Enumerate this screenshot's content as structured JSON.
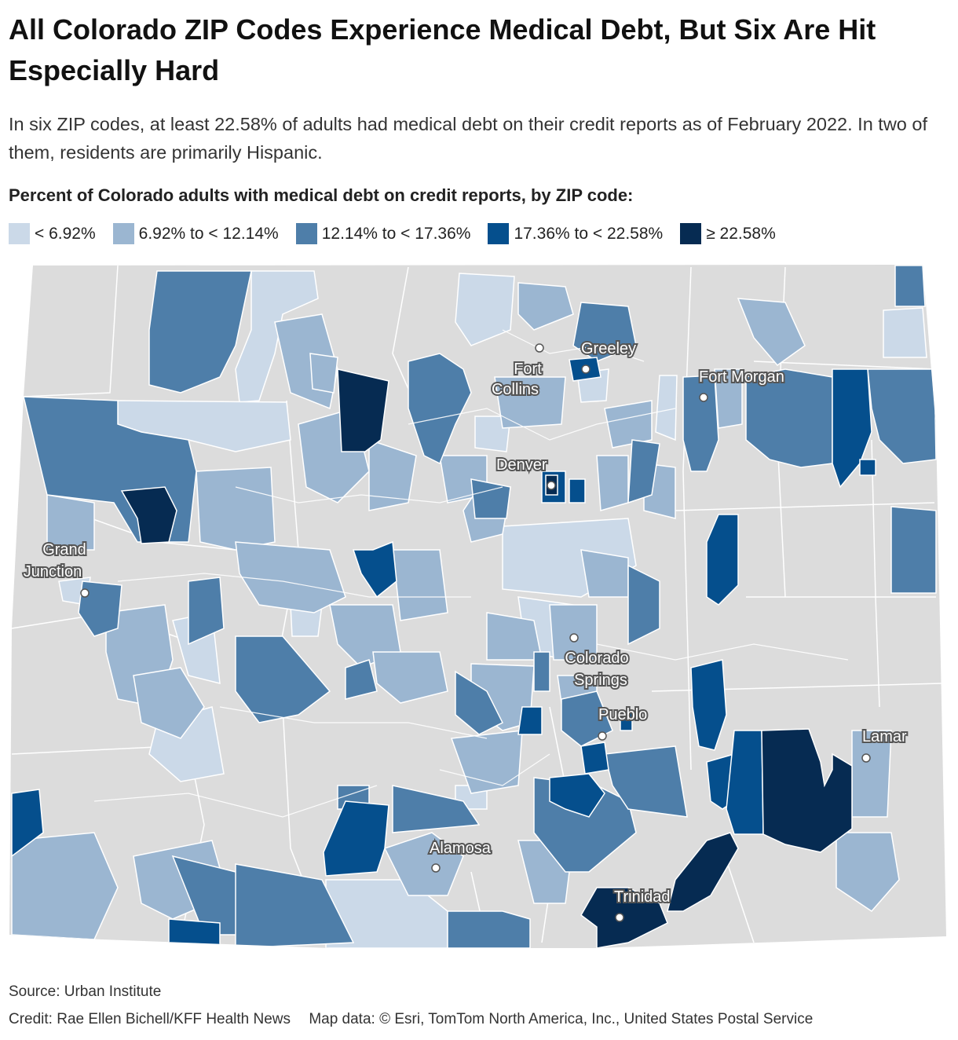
{
  "title": "All Colorado ZIP Codes Experience Medical Debt, But Six Are Hit Especially Hard",
  "subtitle": "In six ZIP codes, at least 22.58% of adults had medical debt on their credit reports as of February 2022. In two of them, residents are primarily Hispanic.",
  "legend": {
    "title": "Percent of Colorado adults with medical debt on credit reports, by ZIP code:",
    "items": [
      {
        "label": "< 6.92%",
        "color": "#cbd9e8"
      },
      {
        "label": "6.92% to < 12.14%",
        "color": "#9bb6d1"
      },
      {
        "label": "12.14% to < 17.36%",
        "color": "#4e7ea9"
      },
      {
        "label": "17.36% to < 22.58%",
        "color": "#054f8d"
      },
      {
        "label": "≥ 22.58%",
        "color": "#062b52"
      }
    ]
  },
  "cities": [
    {
      "label1": "Greeley",
      "label2": ""
    },
    {
      "label1": "Fort",
      "label2": "Collins"
    },
    {
      "label1": "Fort Morgan",
      "label2": ""
    },
    {
      "label1": "Denver",
      "label2": ""
    },
    {
      "label1": "Grand",
      "label2": "Junction"
    },
    {
      "label1": "Colorado",
      "label2": "Springs"
    },
    {
      "label1": "Pueblo",
      "label2": ""
    },
    {
      "label1": "Lamar",
      "label2": ""
    },
    {
      "label1": "Alamosa",
      "label2": ""
    },
    {
      "label1": "Trinidad",
      "label2": ""
    }
  ],
  "colors": {
    "nodata": "#dcdcdc",
    "border": "#ffffff"
  },
  "source": "Source: Urban Institute",
  "credit": "Credit: Rae Ellen Bichell/KFF Health News",
  "map_data": "Map data: © Esri, TomTom North America, Inc., United States Postal Service"
}
